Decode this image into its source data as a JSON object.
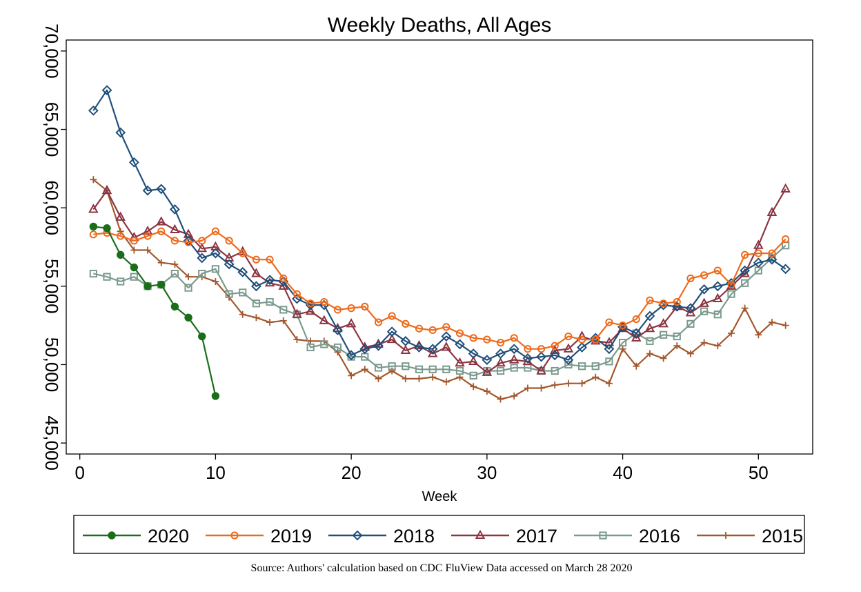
{
  "chart_data": {
    "type": "line",
    "title": "Weekly Deaths, All Ages",
    "xlabel": "Week",
    "ylabel": "",
    "xlim": [
      -1,
      54
    ],
    "ylim": [
      44300,
      70700
    ],
    "x_ticks": [
      0,
      10,
      20,
      30,
      40,
      50
    ],
    "x_tick_labels": [
      "0",
      "10",
      "20",
      "30",
      "40",
      "50"
    ],
    "y_ticks": [
      45000,
      50000,
      55000,
      60000,
      65000,
      70000
    ],
    "y_tick_labels": [
      "45,000",
      "50,000",
      "55,000",
      "60,000",
      "65,000",
      "70,000"
    ],
    "grid": false,
    "legend_position": "bottom",
    "source": "Source: Authors' calculation based on CDC FluView Data accessed on March 28 2020",
    "series": [
      {
        "name": "2020",
        "color": "#1a6e1a",
        "marker": "filled-circle",
        "x": [
          1,
          2,
          3,
          4,
          5,
          6,
          7,
          8,
          9,
          10
        ],
        "values": [
          58800,
          58700,
          57000,
          56200,
          55000,
          55100,
          53700,
          53000,
          51800,
          48000
        ]
      },
      {
        "name": "2019",
        "color": "#ee6a1c",
        "marker": "open-circle",
        "x": [
          1,
          2,
          3,
          4,
          5,
          6,
          7,
          8,
          9,
          10,
          11,
          12,
          13,
          14,
          15,
          16,
          17,
          18,
          19,
          20,
          21,
          22,
          23,
          24,
          25,
          26,
          27,
          28,
          29,
          30,
          31,
          32,
          33,
          34,
          35,
          36,
          37,
          38,
          39,
          40,
          41,
          42,
          43,
          44,
          45,
          46,
          47,
          48,
          49,
          50,
          51,
          52
        ],
        "values": [
          58300,
          58400,
          58200,
          57900,
          58200,
          58500,
          57900,
          57800,
          57900,
          58500,
          57900,
          57100,
          56700,
          56700,
          55500,
          54500,
          53900,
          54000,
          53500,
          53600,
          53700,
          52700,
          53100,
          52600,
          52300,
          52200,
          52400,
          52000,
          51700,
          51600,
          51400,
          51700,
          51000,
          51000,
          51200,
          51800,
          51600,
          51600,
          52700,
          52500,
          52900,
          54100,
          53900,
          54000,
          55500,
          55700,
          56000,
          55100,
          57000,
          57100,
          57100,
          58000
        ]
      },
      {
        "name": "2018",
        "color": "#1f4e79",
        "marker": "open-diamond",
        "x": [
          1,
          2,
          3,
          4,
          5,
          6,
          7,
          8,
          9,
          10,
          11,
          12,
          13,
          14,
          15,
          16,
          17,
          18,
          19,
          20,
          21,
          22,
          23,
          24,
          25,
          26,
          27,
          28,
          29,
          30,
          31,
          32,
          33,
          34,
          35,
          36,
          37,
          38,
          39,
          40,
          41,
          42,
          43,
          44,
          45,
          46,
          47,
          48,
          49,
          50,
          51,
          52
        ],
        "values": [
          66200,
          67500,
          64800,
          62900,
          61100,
          61200,
          59900,
          57900,
          56800,
          57100,
          56400,
          55900,
          55000,
          55400,
          55300,
          54200,
          53800,
          53800,
          52200,
          50600,
          51000,
          51200,
          52100,
          51500,
          51100,
          51000,
          51800,
          51300,
          50700,
          50300,
          50700,
          51000,
          50400,
          50500,
          50600,
          50300,
          51100,
          51700,
          51000,
          52400,
          52000,
          53100,
          53800,
          53700,
          53600,
          54800,
          55000,
          55200,
          56000,
          56500,
          56700,
          56100
        ]
      },
      {
        "name": "2017",
        "color": "#8b3442",
        "marker": "open-triangle",
        "x": [
          1,
          2,
          3,
          4,
          5,
          6,
          7,
          8,
          9,
          10,
          11,
          12,
          13,
          14,
          15,
          16,
          17,
          18,
          19,
          20,
          21,
          22,
          23,
          24,
          25,
          26,
          27,
          28,
          29,
          30,
          31,
          32,
          33,
          34,
          35,
          36,
          37,
          38,
          39,
          40,
          41,
          42,
          43,
          44,
          45,
          46,
          47,
          48,
          49,
          50,
          51,
          52
        ],
        "values": [
          59900,
          61100,
          59400,
          58100,
          58500,
          59100,
          58600,
          58300,
          57400,
          57500,
          56800,
          57200,
          55800,
          55200,
          55000,
          53200,
          53400,
          52800,
          52300,
          52600,
          51100,
          51300,
          51600,
          50900,
          51200,
          50700,
          51100,
          50100,
          50200,
          49500,
          50100,
          50300,
          50200,
          49600,
          50900,
          51000,
          51800,
          51500,
          51400,
          52300,
          51700,
          52300,
          52600,
          53700,
          53300,
          53900,
          54200,
          55000,
          55800,
          57600,
          59700,
          61200
        ]
      },
      {
        "name": "2016",
        "color": "#7b9a8e",
        "marker": "open-square",
        "x": [
          1,
          2,
          3,
          4,
          5,
          6,
          7,
          8,
          9,
          10,
          11,
          12,
          13,
          14,
          15,
          16,
          17,
          18,
          19,
          20,
          21,
          22,
          23,
          24,
          25,
          26,
          27,
          28,
          29,
          30,
          31,
          32,
          33,
          34,
          35,
          36,
          37,
          38,
          39,
          40,
          41,
          42,
          43,
          44,
          45,
          46,
          47,
          48,
          49,
          50,
          51,
          52
        ],
        "values": [
          55800,
          55600,
          55300,
          55600,
          55000,
          55100,
          55800,
          54900,
          55800,
          56100,
          54500,
          54600,
          53900,
          54000,
          53500,
          53200,
          51100,
          51300,
          51100,
          50500,
          50500,
          49800,
          49900,
          49900,
          49700,
          49700,
          49700,
          49600,
          49300,
          49600,
          49600,
          49800,
          49800,
          49600,
          49600,
          50000,
          49900,
          49900,
          50200,
          51400,
          52000,
          51500,
          51900,
          51800,
          52600,
          53400,
          53200,
          54500,
          55200,
          56000,
          56800,
          57600
        ]
      },
      {
        "name": "2015",
        "color": "#a3582d",
        "marker": "plus",
        "x": [
          1,
          2,
          3,
          4,
          5,
          6,
          7,
          8,
          9,
          10,
          11,
          12,
          13,
          14,
          15,
          16,
          17,
          18,
          19,
          20,
          21,
          22,
          23,
          24,
          25,
          26,
          27,
          28,
          29,
          30,
          31,
          32,
          33,
          34,
          35,
          36,
          37,
          38,
          39,
          40,
          41,
          42,
          43,
          44,
          45,
          46,
          47,
          48,
          49,
          50,
          51,
          52
        ],
        "values": [
          61800,
          61100,
          58500,
          57300,
          57300,
          56500,
          56400,
          55600,
          55600,
          55300,
          54300,
          53200,
          53000,
          52700,
          52800,
          51600,
          51500,
          51500,
          50800,
          49300,
          49700,
          49100,
          49600,
          49100,
          49100,
          49200,
          48900,
          49200,
          48600,
          48300,
          47800,
          48000,
          48500,
          48500,
          48700,
          48800,
          48800,
          49200,
          48800,
          51000,
          49900,
          50700,
          50400,
          51200,
          50700,
          51400,
          51200,
          52000,
          53600,
          51900,
          52700,
          52500
        ]
      }
    ]
  }
}
